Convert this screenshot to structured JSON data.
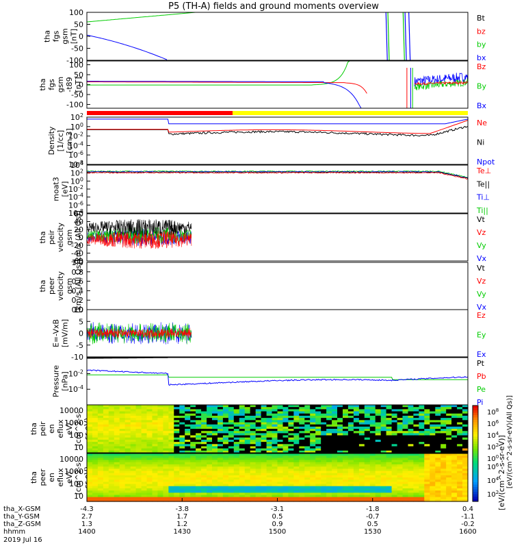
{
  "title": "P5 (TH-A) fields and ground moments overview",
  "chart_data": [
    {
      "type": "line",
      "id": "fgs",
      "ylabel": [
        "tha",
        "fgs",
        "gsm",
        "[nT]"
      ],
      "ylim": [
        -100,
        100
      ],
      "yticks": [
        "100",
        "50",
        "0",
        "-50",
        "-100"
      ],
      "legend": [
        {
          "name": "Bt",
          "color": "#000000"
        },
        {
          "name": "bz",
          "color": "#ff0000"
        },
        {
          "name": "by",
          "color": "#00cc00"
        },
        {
          "name": "bx",
          "color": "#0000ff"
        }
      ]
    },
    {
      "type": "line",
      "id": "fgs-t89",
      "ylabel": [
        "tha",
        "fgs",
        "gsm",
        "-t89",
        "[nT]"
      ],
      "ylim": [
        -120,
        120
      ],
      "yticks": [
        "100",
        "50",
        "0",
        "-50",
        "-100"
      ],
      "legend": [
        {
          "name": "Bz",
          "color": "#ff0000"
        },
        {
          "name": "By",
          "color": "#00cc00"
        },
        {
          "name": "Bx",
          "color": "#0000ff"
        }
      ]
    },
    {
      "type": "line",
      "id": "density",
      "ylabel": [
        "Density",
        "[1/cc]",
        "[cm-3]"
      ],
      "scale": "log",
      "ylim": [
        -9,
        3
      ],
      "yticks": [
        "10^2",
        "10^0",
        "10^-2",
        "10^-4",
        "10^-6",
        "10^-8"
      ],
      "legend": [
        {
          "name": "Ne",
          "color": "#ff0000"
        },
        {
          "name": "Ni",
          "color": "#000000"
        },
        {
          "name": "Npot",
          "color": "#0000ff"
        }
      ]
    },
    {
      "type": "line",
      "id": "moat3",
      "ylabel": [
        "moat3",
        "[eV]"
      ],
      "scale": "log",
      "ylim": [
        -9,
        5
      ],
      "yticks": [
        "10^4",
        "10^2",
        "10^0",
        "10^-2",
        "10^-4",
        "10^-6",
        "10^-8"
      ],
      "legend": [
        {
          "name": "Te⊥",
          "color": "#ff0000"
        },
        {
          "name": "Te||",
          "color": "#000000"
        },
        {
          "name": "Ti⊥",
          "color": "#0000ff"
        },
        {
          "name": "Ti||",
          "color": "#00cc00"
        }
      ]
    },
    {
      "type": "line",
      "id": "peir-velocity",
      "ylabel": [
        "tha",
        "peir",
        "velocity",
        "gsm",
        "[km/s (All Qs)]"
      ],
      "ylim": [
        -60,
        60
      ],
      "yticks": [
        "60",
        "40",
        "20",
        "0",
        "-20",
        "-40",
        "-60"
      ],
      "legend": [
        {
          "name": "Vt",
          "color": "#000000"
        },
        {
          "name": "Vz",
          "color": "#ff0000"
        },
        {
          "name": "Vy",
          "color": "#00cc00"
        },
        {
          "name": "Vx",
          "color": "#0000ff"
        }
      ]
    },
    {
      "type": "line",
      "id": "peer-velocity",
      "ylabel": [
        "tha",
        "peer",
        "velocity",
        "gsm",
        "[km/s (All Qs)]"
      ],
      "ylim": [
        0,
        1
      ],
      "yticks": [
        "1.0",
        "0.8",
        "0.6",
        "0.4",
        "0.2",
        "0.0"
      ],
      "legend": [
        {
          "name": "Vt",
          "color": "#000000"
        },
        {
          "name": "Vz",
          "color": "#ff0000"
        },
        {
          "name": "Vy",
          "color": "#00cc00"
        },
        {
          "name": "Vx",
          "color": "#0000ff"
        }
      ]
    },
    {
      "type": "line",
      "id": "efield",
      "ylabel": [
        "E=-VxB",
        "[mV/m]"
      ],
      "ylim": [
        -12,
        12
      ],
      "yticks": [
        "10",
        "5",
        "0",
        "-5",
        "-10"
      ],
      "legend": [
        {
          "name": "Ez",
          "color": "#ff0000"
        },
        {
          "name": "Ey",
          "color": "#00cc00"
        },
        {
          "name": "Ex",
          "color": "#0000ff"
        }
      ]
    },
    {
      "type": "line",
      "id": "pressure",
      "ylabel": [
        "Pressure",
        "[nPa]"
      ],
      "scale": "log",
      "ylim": [
        -6,
        0
      ],
      "yticks": [
        "10^-2",
        "10^-4"
      ],
      "legend": [
        {
          "name": "Pt",
          "color": "#000000"
        },
        {
          "name": "Pb",
          "color": "#ff0000"
        },
        {
          "name": "Pe",
          "color": "#00cc00"
        },
        {
          "name": "Pi",
          "color": "#0000ff"
        }
      ]
    },
    {
      "type": "heatmap",
      "id": "peir-eflux",
      "ylabel": [
        "tha",
        "peir",
        "en",
        "eflux",
        "eV/",
        "(cm^2-s-",
        "sr-eV)"
      ],
      "yticks": [
        "10000",
        "1000",
        "100",
        "10"
      ]
    },
    {
      "type": "heatmap",
      "id": "peer-eflux",
      "ylabel": [
        "tha",
        "peer",
        "en",
        "eflux",
        "eV/",
        "(cm^2-s-",
        "sr-eV)"
      ],
      "yticks": [
        "10000",
        "1000",
        "100",
        "10"
      ]
    }
  ],
  "colorbar": {
    "label": "[eV/(cm^2-s-sr-eV)]",
    "label_top": "[eV/(cm^2-s-sr-eV)(All Qs)]",
    "ticks": [
      "10^8",
      "10^6",
      "10^4",
      "10^2",
      "10^0"
    ],
    "ticks_bottom": [
      "10^6",
      "10^4",
      "10^2"
    ]
  },
  "x_axis": {
    "rows": [
      {
        "label": "tha_X-GSM",
        "values": [
          "-4.3",
          "-3.8",
          "-3.1",
          "-1.8",
          "0.4"
        ]
      },
      {
        "label": "tha_Y-GSM",
        "values": [
          "2.7",
          "1.7",
          "0.5",
          "-0.7",
          "-1.1"
        ]
      },
      {
        "label": "tha_Z-GSM",
        "values": [
          "1.3",
          "1.2",
          "0.9",
          "0.5",
          "-0.2"
        ]
      },
      {
        "label": "hhmm",
        "values": [
          "1400",
          "1430",
          "1500",
          "1530",
          "1600"
        ]
      }
    ],
    "date": "2019 Jul 16"
  },
  "mode_bar": {
    "colors": [
      "#ff0000",
      "#ffff00"
    ],
    "switch_time": "~1443"
  }
}
